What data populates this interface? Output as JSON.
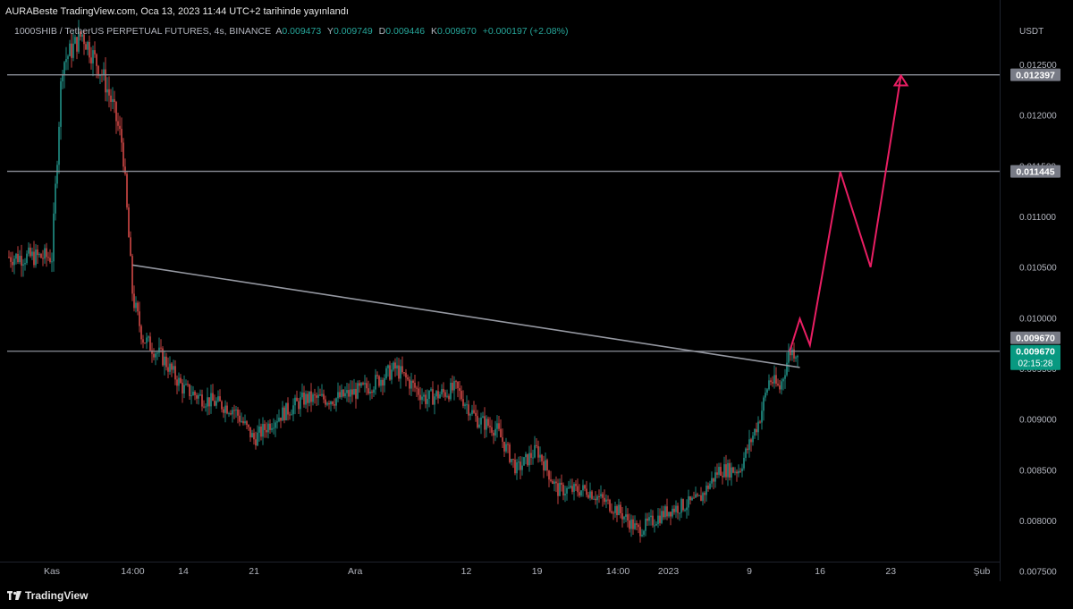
{
  "header": {
    "publisher": "AURABeste TradingView.com, Oca 13, 2023 11:44 UTC+2 tarihinde yayınlandı"
  },
  "legend": {
    "symbol": "1000SHIB / TetherUS PERPETUAL FUTURES, 4s, BINANCE",
    "open_label": "A",
    "open": "0.009473",
    "high_label": "Y",
    "high": "0.009749",
    "low_label": "D",
    "low": "0.009446",
    "close_label": "K",
    "close": "0.009670",
    "change": "+0.000197 (+2.08%)"
  },
  "footer": {
    "brand": "TradingView"
  },
  "colors": {
    "background": "#000000",
    "up": "#26a69a",
    "down": "#ef5350",
    "hline": "#8c8f99",
    "trendline": "#9598a1",
    "projection": "#e91e63",
    "axis_text": "#b2b5be",
    "last_price_bg": "#089981",
    "level_bg": "#787b86"
  },
  "chart_data": {
    "type": "candlestick",
    "title": "1000SHIB / TetherUS PERPETUAL FUTURES, 4s, BINANCE",
    "y_unit": "USDT",
    "ylim": [
      0.0074,
      0.0131
    ],
    "y_ticks": [
      "0.012500",
      "0.012000",
      "0.011500",
      "0.011000",
      "0.010500",
      "0.010000",
      "0.009500",
      "0.009000",
      "0.008500",
      "0.008000",
      "0.007500"
    ],
    "x_labels": [
      "Kas",
      "14:00",
      "14",
      "21",
      "Ara",
      "12",
      "19",
      "14:00",
      "2023",
      "9",
      "16",
      "23",
      "Şub"
    ],
    "price_path": [
      {
        "date": "2022-11-01",
        "price": 0.0106
      },
      {
        "date": "2022-11-02",
        "price": 0.0125
      },
      {
        "date": "2022-11-04",
        "price": 0.0128
      },
      {
        "date": "2022-11-05",
        "price": 0.0126
      },
      {
        "date": "2022-11-06",
        "price": 0.0124
      },
      {
        "date": "2022-11-07",
        "price": 0.0121
      },
      {
        "date": "2022-11-08",
        "price": 0.0117
      },
      {
        "date": "2022-11-09",
        "price": 0.0102
      },
      {
        "date": "2022-11-10",
        "price": 0.0098
      },
      {
        "date": "2022-11-12",
        "price": 0.0096
      },
      {
        "date": "2022-11-14",
        "price": 0.0093
      },
      {
        "date": "2022-11-16",
        "price": 0.0092
      },
      {
        "date": "2022-11-19",
        "price": 0.0091
      },
      {
        "date": "2022-11-21",
        "price": 0.0088
      },
      {
        "date": "2022-11-23",
        "price": 0.009
      },
      {
        "date": "2022-11-26",
        "price": 0.0092
      },
      {
        "date": "2022-11-29",
        "price": 0.0092
      },
      {
        "date": "2022-12-02",
        "price": 0.0093
      },
      {
        "date": "2022-12-05",
        "price": 0.0095
      },
      {
        "date": "2022-12-08",
        "price": 0.0092
      },
      {
        "date": "2022-12-11",
        "price": 0.0093
      },
      {
        "date": "2022-12-13",
        "price": 0.009
      },
      {
        "date": "2022-12-15",
        "price": 0.0089
      },
      {
        "date": "2022-12-17",
        "price": 0.0085
      },
      {
        "date": "2022-12-19",
        "price": 0.0087
      },
      {
        "date": "2022-12-21",
        "price": 0.0083
      },
      {
        "date": "2022-12-24",
        "price": 0.0083
      },
      {
        "date": "2022-12-27",
        "price": 0.0081
      },
      {
        "date": "2022-12-29",
        "price": 0.0079
      },
      {
        "date": "2023-01-01",
        "price": 0.0081
      },
      {
        "date": "2023-01-04",
        "price": 0.0082
      },
      {
        "date": "2023-01-06",
        "price": 0.0085
      },
      {
        "date": "2023-01-08",
        "price": 0.0085
      },
      {
        "date": "2023-01-10",
        "price": 0.009
      },
      {
        "date": "2023-01-11",
        "price": 0.0094
      },
      {
        "date": "2023-01-12",
        "price": 0.0093
      },
      {
        "date": "2023-01-13",
        "price": 0.00967
      }
    ],
    "levels": [
      {
        "label": "0.012397",
        "price": 0.012397
      },
      {
        "label": "0.011445",
        "price": 0.011445
      },
      {
        "label": "0.009670",
        "price": 0.00967
      }
    ],
    "last_price": {
      "label": "0.009670",
      "countdown": "02:15:28",
      "price": 0.00967
    },
    "trendline": [
      {
        "date": "2022-11-09",
        "price": 0.01052
      },
      {
        "date": "2023-01-14",
        "price": 0.00951
      }
    ],
    "projection": [
      {
        "date": "2023-01-13",
        "price": 0.00967
      },
      {
        "date": "2023-01-14",
        "price": 0.00999
      },
      {
        "date": "2023-01-15",
        "price": 0.00973
      },
      {
        "date": "2023-01-18",
        "price": 0.01144
      },
      {
        "date": "2023-01-21",
        "price": 0.0105
      },
      {
        "date": "2023-01-24",
        "price": 0.01239
      }
    ]
  }
}
